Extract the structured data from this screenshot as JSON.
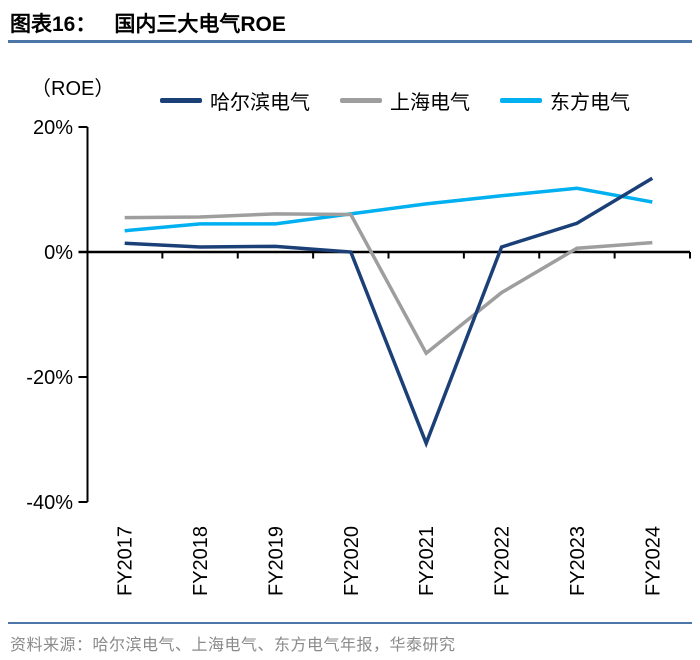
{
  "figure": {
    "label": "图表16：",
    "title": "国内三大电气ROE"
  },
  "legend": {
    "items": [
      {
        "label": "哈尔滨电气",
        "color": "#1B4078"
      },
      {
        "label": "上海电气",
        "color": "#9E9E9E"
      },
      {
        "label": "东方电气",
        "color": "#00B0F0"
      }
    ]
  },
  "chart_data": {
    "type": "line",
    "title": "国内三大电气ROE",
    "ylabel": "（ROE）",
    "categories": [
      "FY2017",
      "FY2018",
      "FY2019",
      "FY2020",
      "FY2021",
      "FY2022",
      "FY2023",
      "FY2024"
    ],
    "series": [
      {
        "key": "harbin",
        "name": "哈尔滨电气",
        "color": "#1B4078",
        "values": [
          1.4,
          0.8,
          0.9,
          0.0,
          -30.6,
          0.8,
          4.6,
          11.8
        ]
      },
      {
        "key": "shanghai",
        "name": "上海电气",
        "color": "#9E9E9E",
        "values": [
          5.5,
          5.6,
          6.1,
          6.0,
          -16.2,
          -6.5,
          0.6,
          1.5
        ]
      },
      {
        "key": "dongfang",
        "name": "东方电气",
        "color": "#00B0F0",
        "values": [
          3.4,
          4.5,
          4.5,
          6.1,
          7.7,
          9.0,
          10.2,
          8.0
        ]
      }
    ],
    "ylim": [
      -40,
      20
    ],
    "y_tick_values": [
      20,
      0,
      -20,
      -40
    ],
    "y_ticks": [
      "20%",
      "0%",
      "-20%",
      "-40%"
    ],
    "grid": false,
    "legend_position": "top"
  },
  "footer": {
    "source_text": "资料来源：哈尔滨电气、上海电气、东方电气年报，华泰研究"
  },
  "colors": {
    "accent_rule": "#4D76A8",
    "axis": "#000000",
    "footer_text": "#8A8A8A"
  }
}
